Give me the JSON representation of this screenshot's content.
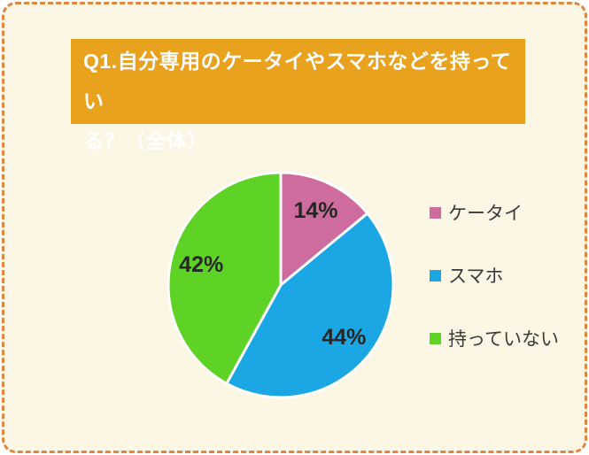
{
  "header": {
    "title": "Q1.自分専用のケータイやスマホなどを持っている？（全体）",
    "lines": [
      "Q1.自分専用のケータイやスマホなどを持ってい",
      "る？（全体）"
    ],
    "bg_color": "#E8A21D",
    "text_color": "#FFFFFF"
  },
  "frame": {
    "background_color": "#FBF7E4",
    "border_color": "#E0873F",
    "border_style": "dashed"
  },
  "chart_data": {
    "type": "pie",
    "title": "Q1.自分専用のケータイやスマホなどを持っている？（全体）",
    "categories": [
      "ケータイ",
      "スマホ",
      "持っていない"
    ],
    "values": [
      14,
      44,
      42
    ],
    "unit": "%",
    "data_labels": [
      "14%",
      "44%",
      "42%"
    ],
    "colors": [
      "#CE6C9E",
      "#1BA7E4",
      "#5FD226"
    ],
    "start_angle_deg": 0,
    "direction": "clockwise",
    "legend_position": "right",
    "slice_label_color": "#262626",
    "slice_border_color": "#FFFFFF"
  }
}
